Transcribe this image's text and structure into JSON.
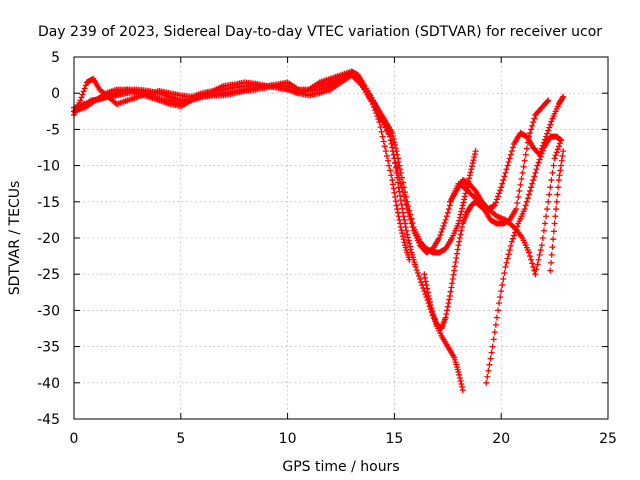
{
  "chart_data": {
    "type": "scatter",
    "title": "Day 239 of 2023, Sidereal Day-to-day VTEC variation (SDTVAR) for receiver ucor",
    "xlabel": "GPS time / hours",
    "ylabel": "SDTVAR / TECUs",
    "xlim": [
      0,
      25
    ],
    "ylim": [
      -45,
      5
    ],
    "xticks": [
      0,
      5,
      10,
      15,
      20,
      25
    ],
    "yticks": [
      5,
      0,
      -5,
      -10,
      -15,
      -20,
      -25,
      -30,
      -35,
      -40,
      -45
    ],
    "grid": true,
    "legend": "none",
    "marker": "+",
    "color": "#ff0000",
    "series": [
      {
        "x": [
          0.0,
          0.4,
          0.8,
          1.2,
          1.6,
          2.0,
          2.5,
          3.0,
          3.5,
          4.0,
          4.5,
          5.0,
          5.5,
          6.0,
          6.5,
          7.0,
          7.5,
          8.0,
          8.5,
          9.0,
          9.5,
          10.0,
          10.5,
          11.0,
          11.5,
          12.0,
          12.5,
          13.0,
          13.3,
          13.6,
          14.0,
          14.3,
          14.6,
          14.9,
          15.1,
          15.3,
          15.6,
          15.9,
          16.2,
          16.5,
          16.8,
          17.1,
          17.4,
          17.7,
          18.0,
          18.2,
          18.4,
          18.6,
          18.8
        ],
        "y": [
          -2.5,
          -1.8,
          -1.0,
          -0.8,
          -0.5,
          -0.3,
          0.0,
          0.3,
          0.0,
          -0.8,
          -1.0,
          -1.5,
          -0.8,
          -0.3,
          0.2,
          0.5,
          0.8,
          1.0,
          1.2,
          1.0,
          1.2,
          1.5,
          0.5,
          0.3,
          0.5,
          1.0,
          2.0,
          3.0,
          2.5,
          1.0,
          -1.0,
          -2.5,
          -4.0,
          -5.5,
          -8.0,
          -11.0,
          -15.0,
          -18.5,
          -20.5,
          -21.5,
          -22.0,
          -22.0,
          -21.5,
          -20.0,
          -18.0,
          -15.5,
          -13.0,
          -10.5,
          -8.0
        ]
      },
      {
        "x": [
          0.0,
          0.3,
          0.6,
          0.9,
          1.2,
          1.6,
          2.0,
          2.5,
          3.0,
          3.5,
          4.0,
          4.5,
          5.0,
          5.5,
          6.0,
          6.5,
          7.0,
          7.5,
          8.0,
          8.5,
          9.0,
          9.5,
          10.0,
          10.5,
          11.0,
          11.5,
          12.0,
          12.5,
          13.0,
          13.4,
          13.8,
          14.2,
          14.5,
          14.8,
          15.0,
          15.2,
          15.4,
          15.6,
          15.8,
          16.0,
          16.3,
          16.6,
          16.9,
          17.2,
          17.5,
          17.8,
          18.0,
          18.2
        ],
        "y": [
          -3.0,
          -1.0,
          1.5,
          2.0,
          0.5,
          -0.5,
          -1.5,
          -1.0,
          -0.5,
          0.0,
          0.3,
          0.0,
          -0.3,
          -0.5,
          0.0,
          0.3,
          1.0,
          1.2,
          1.5,
          1.3,
          1.0,
          0.8,
          0.5,
          0.0,
          0.5,
          1.5,
          2.0,
          2.5,
          3.0,
          1.5,
          -0.5,
          -2.5,
          -4.0,
          -6.0,
          -9.0,
          -13.0,
          -16.5,
          -19.5,
          -22.0,
          -24.0,
          -26.5,
          -29.0,
          -31.5,
          -33.5,
          -35.0,
          -36.5,
          -38.5,
          -41.0
        ]
      },
      {
        "x": [
          0.0,
          0.5,
          1.0,
          1.5,
          2.0,
          2.5,
          3.0,
          3.5,
          4.0,
          4.5,
          5.0,
          5.5,
          6.0,
          6.5,
          7.0,
          7.5,
          8.0,
          8.5,
          9.0,
          9.5,
          10.0,
          10.5,
          11.0,
          11.5,
          12.0,
          12.5,
          13.0,
          13.5,
          14.0,
          14.4,
          14.8,
          15.0,
          15.3,
          15.6,
          15.9,
          16.2,
          16.5,
          16.8,
          17.1,
          17.4,
          17.7,
          18.0,
          18.3,
          18.6,
          19.0,
          19.4,
          19.8,
          20.2,
          20.6,
          21.0,
          21.3,
          21.6,
          21.9,
          22.2,
          22.5,
          22.8
        ],
        "y": [
          -2.0,
          -1.5,
          -1.0,
          0.0,
          0.5,
          0.5,
          0.0,
          -0.5,
          -1.0,
          -1.5,
          -1.8,
          -1.0,
          -0.5,
          -0.3,
          0.0,
          0.2,
          0.5,
          0.8,
          1.0,
          0.8,
          0.5,
          0.0,
          -0.3,
          0.0,
          0.5,
          1.5,
          2.5,
          1.5,
          -1.0,
          -3.5,
          -6.0,
          -9.0,
          -12.5,
          -16.0,
          -19.0,
          -21.0,
          -22.0,
          -21.5,
          -20.0,
          -17.5,
          -14.5,
          -12.5,
          -13.0,
          -14.0,
          -15.0,
          -16.0,
          -17.0,
          -17.5,
          -18.5,
          -20.0,
          -22.0,
          -25.0,
          -21.0,
          -15.0,
          -9.0,
          -6.5
        ]
      },
      {
        "x": [
          0.0,
          0.5,
          1.0,
          1.5,
          2.0,
          2.5,
          3.0,
          3.5,
          4.0,
          4.5,
          5.0,
          5.5,
          6.0,
          6.5,
          7.0,
          7.5,
          8.0,
          8.5,
          9.0,
          9.5,
          10.0,
          10.5,
          11.0,
          11.5,
          12.0,
          12.5,
          13.0,
          13.5,
          14.0,
          14.3,
          14.6,
          14.9,
          15.1,
          15.3,
          15.5,
          15.7
        ],
        "y": [
          -2.5,
          -2.0,
          -1.0,
          -0.5,
          0.0,
          0.5,
          0.5,
          0.3,
          0.0,
          -0.5,
          -1.0,
          -0.8,
          -0.5,
          -0.3,
          -0.3,
          0.0,
          0.3,
          0.5,
          0.8,
          1.0,
          1.0,
          0.5,
          0.5,
          1.0,
          1.5,
          2.0,
          2.5,
          1.0,
          -1.5,
          -4.0,
          -8.0,
          -12.0,
          -15.5,
          -18.5,
          -21.0,
          -23.0
        ]
      },
      {
        "x": [
          17.6,
          17.9,
          18.2,
          18.5,
          18.8,
          19.1,
          19.4,
          19.7,
          20.0,
          20.3,
          20.6,
          20.9,
          21.2,
          21.5,
          21.8,
          22.1,
          22.4,
          22.7,
          22.9
        ],
        "y": [
          -15.0,
          -13.5,
          -12.0,
          -12.5,
          -13.5,
          -15.0,
          -16.0,
          -15.5,
          -13.0,
          -10.0,
          -7.0,
          -5.5,
          -6.0,
          -7.5,
          -8.5,
          -6.0,
          -3.5,
          -1.5,
          -0.5
        ]
      },
      {
        "x": [
          16.4,
          16.6,
          16.8,
          17.0,
          17.2,
          17.4,
          17.6,
          17.8,
          18.0,
          18.2,
          18.4,
          18.6,
          18.8,
          19.0,
          19.2,
          19.5,
          19.8,
          20.1,
          20.4,
          20.7,
          21.0,
          21.3,
          21.6,
          21.9,
          22.2
        ],
        "y": [
          -25.0,
          -28.0,
          -30.5,
          -32.0,
          -32.5,
          -31.0,
          -28.0,
          -24.5,
          -21.0,
          -18.0,
          -16.5,
          -15.5,
          -15.0,
          -15.5,
          -16.0,
          -17.5,
          -18.0,
          -18.0,
          -17.5,
          -16.0,
          -11.0,
          -6.0,
          -3.0,
          -2.0,
          -1.0
        ]
      },
      {
        "x": [
          19.3,
          19.6,
          19.9,
          20.2,
          20.5,
          20.8,
          21.1,
          21.4,
          21.7,
          22.0,
          22.3,
          22.6,
          22.8
        ],
        "y": [
          -40.0,
          -35.0,
          -29.0,
          -24.0,
          -20.5,
          -18.0,
          -16.0,
          -13.0,
          -10.0,
          -7.5,
          -6.0,
          -6.0,
          -6.5
        ]
      },
      {
        "x": [
          22.3,
          22.5,
          22.7,
          22.9
        ],
        "y": [
          -24.5,
          -18.0,
          -12.0,
          -8.0
        ]
      }
    ]
  }
}
